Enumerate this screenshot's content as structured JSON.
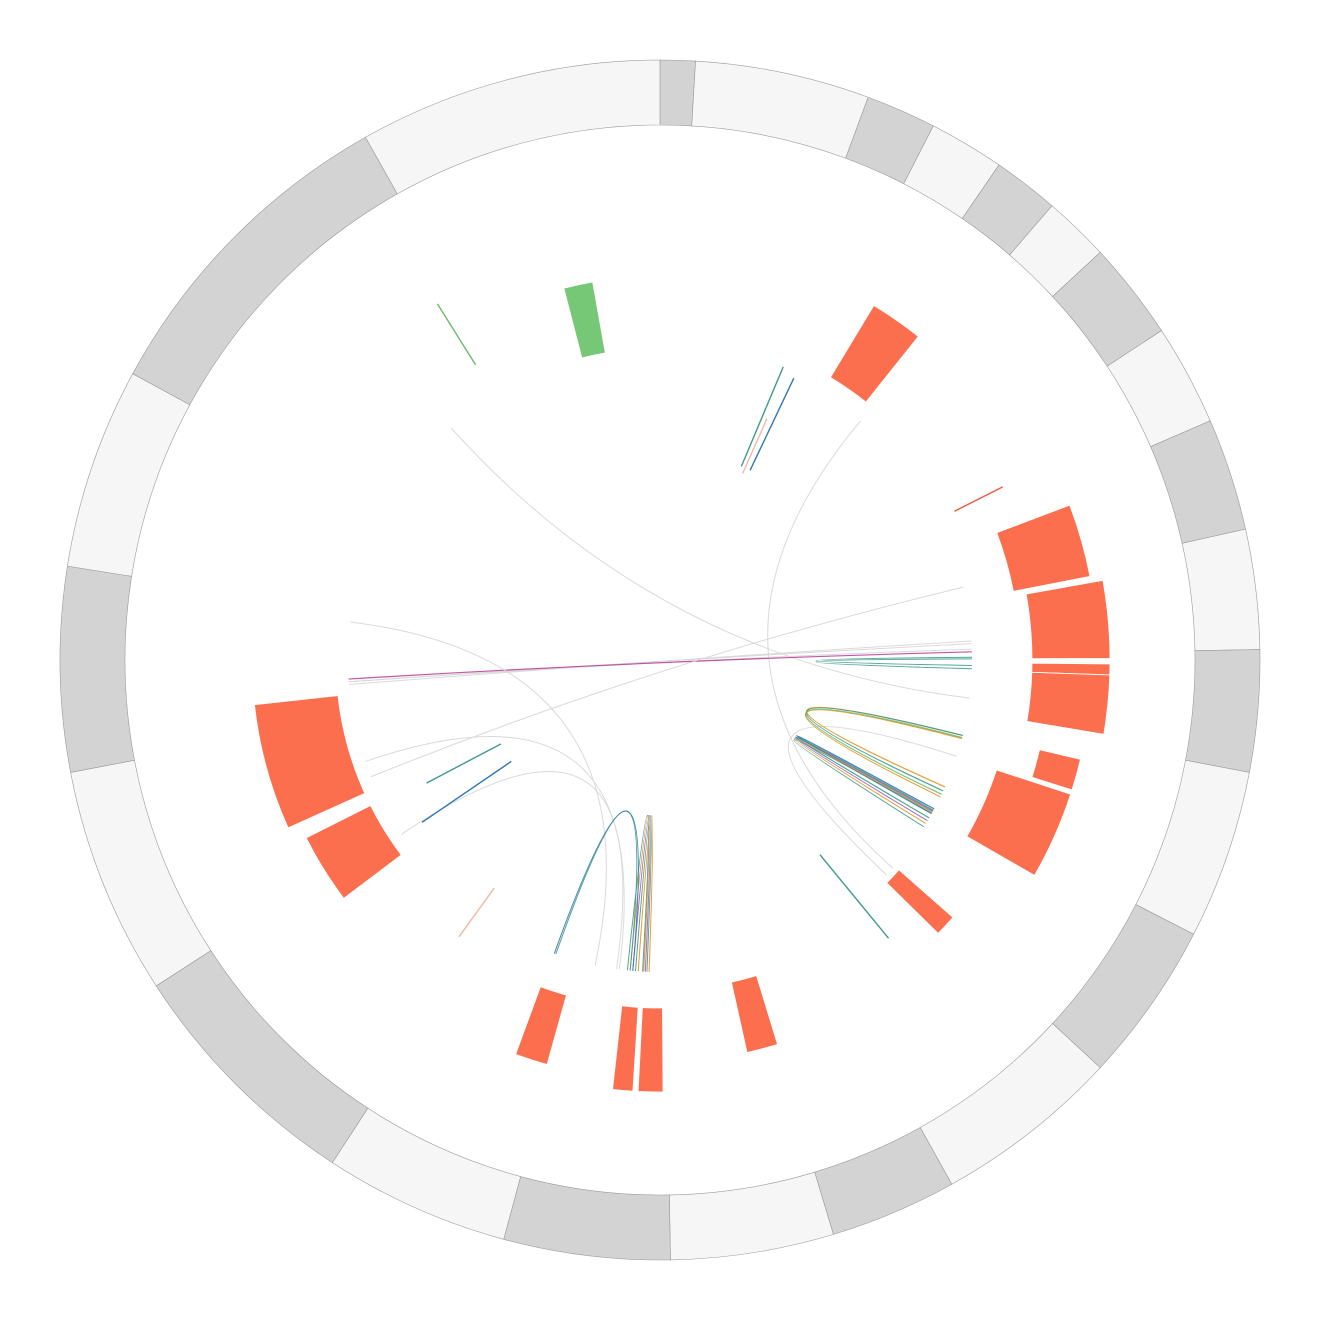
{
  "chart_data": {
    "type": "circos",
    "colors": {
      "ideogram_dark": "#d3d3d3",
      "ideogram_light": "#f6f6f6",
      "ideogram_stroke": "#9a9a9a",
      "block_orange": "#fb6e4e",
      "block_green": "#76c776",
      "link_grey": "#d6d6d6",
      "link_teal": "#3f9b8c",
      "link_blue": "#2f78b4",
      "link_orange": "#e3901a",
      "link_green": "#6dba6d",
      "link_purple": "#9b59b6",
      "link_magenta": "#c1409b",
      "link_peach": "#f2b8a0",
      "link_salmon": "#e85a3c"
    },
    "ideogram": [
      {
        "start": 0.0,
        "end": 3.4,
        "shade": "dark"
      },
      {
        "start": 3.4,
        "end": 20.3,
        "shade": "light"
      },
      {
        "start": 20.3,
        "end": 27.1,
        "shade": "dark"
      },
      {
        "start": 27.1,
        "end": 34.4,
        "shade": "light"
      },
      {
        "start": 34.4,
        "end": 40.8,
        "shade": "dark"
      },
      {
        "start": 40.8,
        "end": 47.2,
        "shade": "light"
      },
      {
        "start": 47.2,
        "end": 56.7,
        "shade": "dark"
      },
      {
        "start": 56.7,
        "end": 66.5,
        "shade": "light"
      },
      {
        "start": 66.5,
        "end": 77.4,
        "shade": "dark"
      },
      {
        "start": 77.4,
        "end": 89.0,
        "shade": "light"
      },
      {
        "start": 89.0,
        "end": 100.8,
        "shade": "dark"
      },
      {
        "start": 100.8,
        "end": 117.2,
        "shade": "light"
      },
      {
        "start": 117.2,
        "end": 132.8,
        "shade": "dark"
      },
      {
        "start": 132.8,
        "end": 150.9,
        "shade": "light"
      },
      {
        "start": 150.9,
        "end": 163.2,
        "shade": "dark"
      },
      {
        "start": 163.2,
        "end": 179.0,
        "shade": "light"
      },
      {
        "start": 179.0,
        "end": 195.1,
        "shade": "dark"
      },
      {
        "start": 195.1,
        "end": 213.1,
        "shade": "light"
      },
      {
        "start": 213.1,
        "end": 237.1,
        "shade": "dark"
      },
      {
        "start": 237.1,
        "end": 259.2,
        "shade": "light"
      },
      {
        "start": 259.2,
        "end": 279.0,
        "shade": "dark"
      },
      {
        "start": 279.0,
        "end": 298.5,
        "shade": "light"
      },
      {
        "start": 298.5,
        "end": 330.6,
        "shade": "dark"
      },
      {
        "start": 330.6,
        "end": 360.0,
        "shade": "light"
      }
    ],
    "blocks": [
      {
        "start": 345.5,
        "end": 349.9,
        "inner": 0.52,
        "outer": 0.64,
        "color": "block_green"
      },
      {
        "start": 31.1,
        "end": 38.6,
        "inner": 0.55,
        "outer": 0.69,
        "color": "block_orange"
      },
      {
        "start": 69.3,
        "end": 79.0,
        "inner": 0.6,
        "outer": 0.73,
        "color": "block_orange"
      },
      {
        "start": 79.8,
        "end": 89.8,
        "inner": 0.62,
        "outer": 0.75,
        "color": "block_orange"
      },
      {
        "start": 90.5,
        "end": 91.9,
        "inner": 0.62,
        "outer": 0.75,
        "color": "block_orange"
      },
      {
        "start": 91.9,
        "end": 99.5,
        "inner": 0.62,
        "outer": 0.75,
        "color": "block_orange"
      },
      {
        "start": 103.3,
        "end": 107.5,
        "inner": 0.65,
        "outer": 0.72,
        "color": "block_orange"
      },
      {
        "start": 108.1,
        "end": 119.9,
        "inner": 0.59,
        "outer": 0.72,
        "color": "block_orange"
      },
      {
        "start": 131.3,
        "end": 134.5,
        "inner": 0.53,
        "outer": 0.65,
        "color": "block_orange"
      },
      {
        "start": 163.0,
        "end": 167.5,
        "inner": 0.55,
        "outer": 0.67,
        "color": "block_orange"
      },
      {
        "start": 179.6,
        "end": 182.9,
        "inner": 0.58,
        "outer": 0.72,
        "color": "block_orange"
      },
      {
        "start": 183.6,
        "end": 186.3,
        "inner": 0.58,
        "outer": 0.72,
        "color": "block_orange"
      },
      {
        "start": 195.6,
        "end": 200.1,
        "inner": 0.58,
        "outer": 0.7,
        "color": "block_orange"
      },
      {
        "start": 233.0,
        "end": 243.3,
        "inner": 0.54,
        "outer": 0.66,
        "color": "block_orange"
      },
      {
        "start": 245.7,
        "end": 263.7,
        "inner": 0.54,
        "outer": 0.68,
        "color": "block_orange"
      }
    ],
    "radial_ticks": [
      {
        "angle": 25.4,
        "inner": 0.35,
        "outer": 0.52,
        "color": "link_blue"
      },
      {
        "angle": 23.9,
        "inner": 0.34,
        "outer": 0.44,
        "color": "link_peach"
      },
      {
        "angle": 22.8,
        "inner": 0.35,
        "outer": 0.53,
        "color": "link_teal"
      },
      {
        "angle": 63.2,
        "inner": 0.55,
        "outer": 0.64,
        "color": "link_salmon"
      },
      {
        "angle": 140.6,
        "inner": 0.42,
        "outer": 0.6,
        "color": "link_teal"
      },
      {
        "angle": 216.0,
        "inner": 0.47,
        "outer": 0.57,
        "color": "link_peach"
      },
      {
        "angle": 235.7,
        "inner": 0.3,
        "outer": 0.48,
        "color": "link_blue"
      },
      {
        "angle": 242.2,
        "inner": 0.3,
        "outer": 0.44,
        "color": "link_teal"
      },
      {
        "angle": 328.0,
        "inner": 0.58,
        "outer": 0.7,
        "color": "link_green"
      }
    ],
    "links": [
      {
        "from": 108.0,
        "to": 133.5,
        "color": "link_grey",
        "width": 1.0
      },
      {
        "from": 131.8,
        "to": 40.0,
        "color": "link_grey",
        "width": 1.0
      },
      {
        "from": 97.0,
        "to": 318.0,
        "color": "link_grey",
        "width": 1.0
      },
      {
        "from": 266.0,
        "to": 88.0,
        "color": "link_grey",
        "width": 1.0
      },
      {
        "from": 266.0,
        "to": 87.0,
        "color": "link_grey",
        "width": 1.0
      },
      {
        "from": 265.5,
        "to": 86.5,
        "color": "link_grey",
        "width": 1.0
      },
      {
        "from": 266.5,
        "to": 88.5,
        "color": "link_magenta",
        "width": 1.2
      },
      {
        "from": 248.0,
        "to": 76.5,
        "color": "link_grey",
        "width": 1.0
      },
      {
        "from": 277.0,
        "to": 192.0,
        "color": "link_grey",
        "width": 1.0
      },
      {
        "from": 251.0,
        "to": 187.5,
        "color": "link_grey",
        "width": 1.0
      },
      {
        "from": 236.0,
        "to": 188.0,
        "color": "link_grey",
        "width": 1.0
      },
      {
        "from": 104.0,
        "to": 114.0,
        "color": "link_orange",
        "width": 1.2
      },
      {
        "from": 104.0,
        "to": 114.8,
        "color": "link_teal",
        "width": 1.2
      },
      {
        "from": 104.4,
        "to": 115.5,
        "color": "link_green",
        "width": 1.2
      },
      {
        "from": 104.6,
        "to": 116.0,
        "color": "link_orange",
        "width": 1.0
      },
      {
        "from": 118.5,
        "to": 119.5,
        "color": "link_blue",
        "width": 1.2
      },
      {
        "from": 118.8,
        "to": 120.4,
        "color": "link_teal",
        "width": 1.2
      },
      {
        "from": 119.0,
        "to": 121.0,
        "color": "link_purple",
        "width": 1.0
      },
      {
        "from": 119.2,
        "to": 121.6,
        "color": "link_orange",
        "width": 1.0
      },
      {
        "from": 119.4,
        "to": 122.3,
        "color": "link_teal",
        "width": 1.0
      },
      {
        "from": 89.5,
        "to": 91.0,
        "color": "link_teal",
        "width": 1.0
      },
      {
        "from": 89.8,
        "to": 91.6,
        "color": "link_teal",
        "width": 1.0
      },
      {
        "from": 182.0,
        "to": 184.0,
        "color": "link_orange",
        "width": 1.0
      },
      {
        "from": 182.4,
        "to": 184.5,
        "color": "link_teal",
        "width": 1.0
      },
      {
        "from": 182.7,
        "to": 185.0,
        "color": "link_purple",
        "width": 1.0
      },
      {
        "from": 183.0,
        "to": 185.5,
        "color": "link_orange",
        "width": 1.0
      },
      {
        "from": 183.2,
        "to": 186.0,
        "color": "link_teal",
        "width": 1.0
      },
      {
        "from": 199.5,
        "to": 185.5,
        "color": "link_teal",
        "width": 1.0
      },
      {
        "from": 199.8,
        "to": 185.0,
        "color": "link_blue",
        "width": 1.0
      }
    ]
  }
}
